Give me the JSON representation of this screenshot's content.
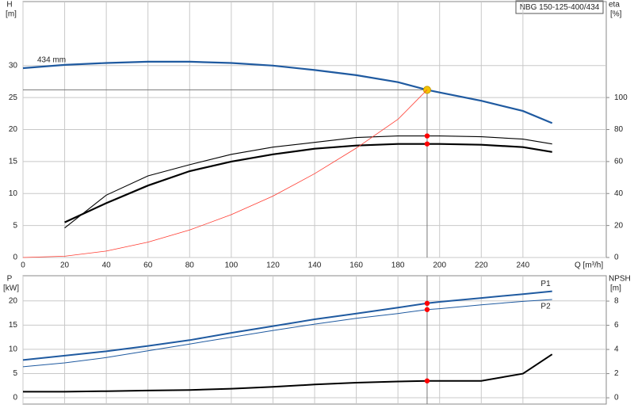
{
  "chart_data": [
    {
      "type": "line",
      "title": "NBG 150-125-400/434",
      "y_label": "H",
      "y_unit": "[m]",
      "y2_label": "eta",
      "y2_unit": "[%]",
      "x_label": "Q [m³/h]",
      "x": [
        0,
        20,
        40,
        60,
        80,
        100,
        120,
        140,
        160,
        180,
        194,
        200,
        220,
        240,
        254
      ],
      "xlim": [
        0,
        280
      ],
      "xticks": [
        0,
        20,
        40,
        60,
        80,
        100,
        120,
        140,
        160,
        180,
        200,
        220,
        240
      ],
      "ylim": [
        0,
        40
      ],
      "yticks": [
        0,
        5,
        10,
        15,
        20,
        25,
        30
      ],
      "y2lim": [
        0,
        160
      ],
      "y2ticks": [
        0,
        20,
        40,
        60,
        80,
        100
      ],
      "grid": true,
      "highlight_index": 10,
      "series": [
        {
          "name": "434 mm",
          "color": "#1f5aa0",
          "width": 2.2,
          "axis": "y",
          "highlight": "#f5c400",
          "values": [
            29.6,
            30.1,
            30.4,
            30.6,
            30.6,
            30.4,
            30.0,
            29.3,
            28.5,
            27.4,
            26.2,
            25.8,
            24.5,
            22.9,
            21.0
          ]
        },
        {
          "color": "#000000",
          "width": 1.1,
          "axis": "y2",
          "highlight": "#ff0000",
          "values": [
            null,
            18.5,
            39,
            51,
            58,
            64.5,
            69,
            72,
            75,
            76,
            76,
            76,
            75.5,
            74,
            71
          ]
        },
        {
          "color": "#000000",
          "width": 2.2,
          "axis": "y2",
          "highlight": "#ff0000",
          "values": [
            null,
            22,
            34,
            45,
            54,
            60,
            64.5,
            68,
            70,
            71,
            71,
            71,
            70.5,
            69,
            66
          ]
        },
        {
          "color": "#ff3b30",
          "width": 0.8,
          "axis": "y",
          "values": [
            0,
            0.2,
            1.0,
            2.4,
            4.3,
            6.7,
            9.6,
            13.1,
            17.1,
            21.6,
            26.2,
            null,
            null,
            null,
            null
          ]
        }
      ]
    },
    {
      "type": "line",
      "y_label": "P",
      "y_unit": "[kW]",
      "y2_label": "NPSH",
      "y2_unit": "[m]",
      "x": [
        0,
        20,
        40,
        60,
        80,
        100,
        120,
        140,
        160,
        180,
        194,
        200,
        220,
        240,
        254
      ],
      "xlim": [
        0,
        280
      ],
      "xticks": [
        0,
        20,
        40,
        60,
        80,
        100,
        120,
        140,
        160,
        180,
        200,
        220,
        240
      ],
      "ylim": [
        -1.3,
        25.2
      ],
      "yticks": [
        0,
        5,
        10,
        15,
        20
      ],
      "y2lim": [
        -0.52,
        10.1
      ],
      "y2ticks": [
        0,
        2,
        4,
        6,
        8
      ],
      "grid": true,
      "highlight_index": 10,
      "series": [
        {
          "name": "P1",
          "color": "#1f5aa0",
          "width": 2,
          "axis": "y",
          "highlight": "#ff0000",
          "values": [
            7.8,
            8.7,
            9.6,
            10.7,
            11.9,
            13.4,
            14.8,
            16.2,
            17.4,
            18.6,
            19.5,
            19.8,
            20.6,
            21.4,
            22.0
          ]
        },
        {
          "name": "P2",
          "color": "#1f5aa0",
          "width": 1,
          "axis": "y",
          "highlight": "#ff0000",
          "values": [
            6.4,
            7.2,
            8.3,
            9.7,
            11.1,
            12.5,
            13.9,
            15.2,
            16.4,
            17.4,
            18.2,
            18.4,
            19.2,
            19.9,
            20.3
          ]
        },
        {
          "color": "#000000",
          "width": 2,
          "axis": "y2",
          "highlight": "#ff0000",
          "values": [
            0.5,
            0.5,
            0.55,
            0.6,
            0.65,
            0.75,
            0.9,
            1.1,
            1.25,
            1.35,
            1.4,
            1.4,
            1.4,
            2.0,
            3.6
          ]
        }
      ]
    }
  ]
}
